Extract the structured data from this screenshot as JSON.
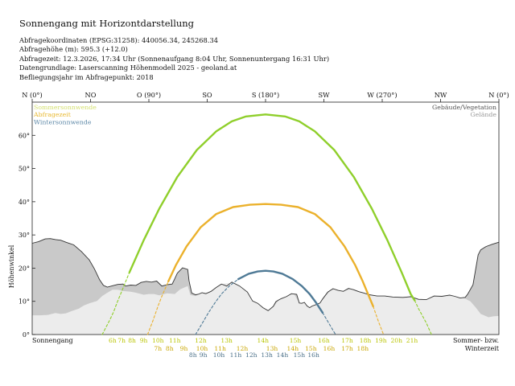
{
  "header": {
    "title": "Sonnengang mit Horizontdarstellung",
    "lines": [
      "Abfragekoordinaten (EPSG:31258): 440056.34, 245268.34",
      "Abfragehöhe (m): 595.3 (+12.0)",
      "Abfragezeit: 12.3.2026, 17:34 Uhr (Sonnenaufgang 8:04 Uhr,  Sonnenuntergang 16:31 Uhr)",
      "Datengrundlage: Laserscanning Höhenmodell 2025 - geoland.at",
      "Befliegungsjahr im Abfragepunkt: 2018"
    ]
  },
  "chart_data": {
    "type": "line",
    "xlim": [
      0,
      360
    ],
    "ylim": [
      0,
      70
    ],
    "ylabel": "Höhenwinkel",
    "y_ticks": [
      0,
      10,
      20,
      30,
      40,
      50,
      60
    ],
    "y_tick_labels": [
      "0°",
      "10°",
      "20°",
      "30°",
      "40°",
      "50°",
      "60°"
    ],
    "x_ticks": [
      {
        "az": 0,
        "label": "N (0°)"
      },
      {
        "az": 45,
        "label": "NO"
      },
      {
        "az": 90,
        "label": "O (90°)"
      },
      {
        "az": 135,
        "label": "SO"
      },
      {
        "az": 180,
        "label": "S (180°)"
      },
      {
        "az": 225,
        "label": "SW"
      },
      {
        "az": 270,
        "label": "W (270°)"
      },
      {
        "az": 315,
        "label": "NW"
      },
      {
        "az": 360,
        "label": "N (0°)"
      }
    ],
    "legend_left": [
      {
        "label": "Sommersonnwende",
        "color": "#d4e070"
      },
      {
        "label": "Abfragezeit",
        "color": "#e8b830"
      },
      {
        "label": "Wintersonnwende",
        "color": "#5a86a6"
      }
    ],
    "legend_right": [
      {
        "label": "Gebäude/Vegetation",
        "color": "#555555"
      },
      {
        "label": "Gelände",
        "color": "#9a9a9a"
      }
    ],
    "bottom_left_label": "Sonnengang",
    "bottom_right_label_1": "Sommer- bzw.",
    "bottom_right_label_2": "Winterzeit",
    "colors": {
      "summer": "#8fcf2b",
      "query": "#ebb12c",
      "winter": "#4f7a96",
      "summer_label": "#b9c400",
      "query_label": "#c9a600",
      "winter_label": "#476d86",
      "building": "#c9c9c9",
      "terrain": "#ececec"
    },
    "series": [
      {
        "name": "Sommersonnwende",
        "key": "summer",
        "points": [
          [
            54,
            0
          ],
          [
            60,
            4.5
          ],
          [
            63,
            7
          ],
          [
            64.5,
            8.6
          ],
          [
            66,
            10.1
          ],
          [
            68.5,
            12.5
          ],
          [
            75,
            18.7
          ],
          [
            86,
            28.4
          ],
          [
            98,
            37.9
          ],
          [
            112,
            47.5
          ],
          [
            127,
            55.6
          ],
          [
            142,
            61.2
          ],
          [
            154,
            64.2
          ],
          [
            165,
            65.7
          ],
          [
            180,
            66.3
          ],
          [
            195,
            65.7
          ],
          [
            206,
            64.2
          ],
          [
            218,
            61.2
          ],
          [
            233,
            55.6
          ],
          [
            248,
            47.5
          ],
          [
            262,
            37.9
          ],
          [
            274,
            28.4
          ],
          [
            285,
            18.7
          ],
          [
            292,
            12.2
          ],
          [
            295,
            10.3
          ],
          [
            298,
            7.8
          ],
          [
            304,
            3.5
          ],
          [
            308,
            0
          ]
        ],
        "hour_labels": [
          {
            "az": 62,
            "text": "6h"
          },
          {
            "az": 69,
            "text": "7h"
          },
          {
            "az": 77,
            "text": "8h"
          },
          {
            "az": 86,
            "text": "9h"
          },
          {
            "az": 97,
            "text": "10h"
          },
          {
            "az": 110,
            "text": "11h"
          },
          {
            "az": 130,
            "text": "12h"
          },
          {
            "az": 150,
            "text": "13h"
          },
          {
            "az": 178,
            "text": "14h"
          },
          {
            "az": 203,
            "text": "15h"
          },
          {
            "az": 225,
            "text": "16h"
          },
          {
            "az": 243,
            "text": "17h"
          },
          {
            "az": 257,
            "text": "18h"
          },
          {
            "az": 269,
            "text": "19h"
          },
          {
            "az": 281,
            "text": "20h"
          },
          {
            "az": 293,
            "text": "21h"
          }
        ]
      },
      {
        "name": "Abfragezeit",
        "key": "query",
        "points": [
          [
            89,
            0
          ],
          [
            93,
            4
          ],
          [
            97,
            8.5
          ],
          [
            100,
            11.5
          ],
          [
            105,
            16
          ],
          [
            111,
            21
          ],
          [
            119,
            26.5
          ],
          [
            130,
            32.3
          ],
          [
            142,
            36.3
          ],
          [
            155,
            38.4
          ],
          [
            168,
            39.1
          ],
          [
            180,
            39.3
          ],
          [
            192,
            39.1
          ],
          [
            205,
            38.4
          ],
          [
            218,
            36.3
          ],
          [
            230,
            32.3
          ],
          [
            241,
            26.5
          ],
          [
            249,
            21
          ],
          [
            255,
            16
          ],
          [
            259,
            12.2
          ],
          [
            263,
            8.5
          ],
          [
            267,
            4
          ],
          [
            271,
            0
          ]
        ],
        "hour_labels": [
          {
            "az": 97,
            "text": "7h"
          },
          {
            "az": 106,
            "text": "8h"
          },
          {
            "az": 117,
            "text": "9h"
          },
          {
            "az": 131,
            "text": "10h"
          },
          {
            "az": 145,
            "text": "11h"
          },
          {
            "az": 162,
            "text": "12h"
          },
          {
            "az": 185,
            "text": "13h"
          },
          {
            "az": 201,
            "text": "14h"
          },
          {
            "az": 215,
            "text": "15h"
          },
          {
            "az": 229,
            "text": "16h"
          },
          {
            "az": 243,
            "text": "17h"
          },
          {
            "az": 255,
            "text": "18h"
          }
        ]
      },
      {
        "name": "Wintersonnwende",
        "key": "winter",
        "points": [
          [
            126,
            0
          ],
          [
            131,
            3.3
          ],
          [
            136,
            6.6
          ],
          [
            141,
            9.6
          ],
          [
            146,
            12.2
          ],
          [
            152,
            14.6
          ],
          [
            159,
            16.7
          ],
          [
            167,
            18.3
          ],
          [
            174,
            19
          ],
          [
            180,
            19.2
          ],
          [
            186,
            19
          ],
          [
            193,
            18.3
          ],
          [
            201,
            16.7
          ],
          [
            208,
            14.6
          ],
          [
            214,
            12.2
          ],
          [
            219,
            9.6
          ],
          [
            224,
            6.6
          ],
          [
            229,
            3.3
          ],
          [
            234,
            0
          ]
        ],
        "hour_labels": [
          {
            "az": 124,
            "text": "8h"
          },
          {
            "az": 132,
            "text": "9h"
          },
          {
            "az": 144,
            "text": "10h"
          },
          {
            "az": 157,
            "text": "11h"
          },
          {
            "az": 169,
            "text": "12h"
          },
          {
            "az": 181,
            "text": "13h"
          },
          {
            "az": 193,
            "text": "14h"
          },
          {
            "az": 206,
            "text": "15h"
          },
          {
            "az": 217,
            "text": "16h"
          }
        ]
      }
    ],
    "building_horizon": [
      [
        0,
        27.5
      ],
      [
        5,
        28
      ],
      [
        10,
        28.8
      ],
      [
        14,
        28.9
      ],
      [
        18,
        28.6
      ],
      [
        22,
        28.4
      ],
      [
        26,
        27.8
      ],
      [
        32,
        27
      ],
      [
        38,
        25
      ],
      [
        44,
        22.5
      ],
      [
        48,
        19.8
      ],
      [
        52,
        16.5
      ],
      [
        55,
        14.8
      ],
      [
        58,
        14.3
      ],
      [
        62,
        14.7
      ],
      [
        66,
        15.1
      ],
      [
        70,
        15.2
      ],
      [
        72,
        14.6
      ],
      [
        76,
        14.9
      ],
      [
        80,
        14.8
      ],
      [
        84,
        15.7
      ],
      [
        88,
        16
      ],
      [
        92,
        15.8
      ],
      [
        96,
        16.1
      ],
      [
        100,
        14.6
      ],
      [
        104,
        15
      ],
      [
        108,
        15.2
      ],
      [
        110,
        16.8
      ],
      [
        112,
        18.5
      ],
      [
        116,
        20.1
      ],
      [
        120,
        19.6
      ],
      [
        121,
        16.2
      ],
      [
        123,
        12.5
      ],
      [
        126,
        12
      ],
      [
        128,
        12.1
      ],
      [
        131,
        12.6
      ],
      [
        134,
        12.3
      ],
      [
        138,
        13
      ],
      [
        142,
        14.2
      ],
      [
        146,
        15.2
      ],
      [
        150,
        14.6
      ],
      [
        154,
        15.8
      ],
      [
        160,
        14.6
      ],
      [
        166,
        12.8
      ],
      [
        170,
        10.1
      ],
      [
        174,
        9.4
      ],
      [
        178,
        8.1
      ],
      [
        182,
        7.2
      ],
      [
        186,
        8.5
      ],
      [
        188,
        9.9
      ],
      [
        190,
        10.4
      ],
      [
        192,
        10.8
      ],
      [
        196,
        11.4
      ],
      [
        200,
        12.3
      ],
      [
        204,
        12.1
      ],
      [
        206,
        9.5
      ],
      [
        208,
        9.4
      ],
      [
        210,
        9.7
      ],
      [
        212,
        8.6
      ],
      [
        214,
        8.1
      ],
      [
        216,
        8.6
      ],
      [
        219,
        9
      ],
      [
        222,
        9.5
      ],
      [
        224,
        10.7
      ],
      [
        228,
        12.8
      ],
      [
        232,
        13.8
      ],
      [
        236,
        13.3
      ],
      [
        240,
        13
      ],
      [
        244,
        13.9
      ],
      [
        248,
        13.5
      ],
      [
        252,
        12.9
      ],
      [
        256,
        12.5
      ],
      [
        260,
        12
      ],
      [
        266,
        11.6
      ],
      [
        272,
        11.6
      ],
      [
        278,
        11.3
      ],
      [
        286,
        11.2
      ],
      [
        292,
        11.4
      ],
      [
        298,
        10.6
      ],
      [
        304,
        10.5
      ],
      [
        310,
        11.6
      ],
      [
        316,
        11.5
      ],
      [
        322,
        11.9
      ],
      [
        326,
        11.5
      ],
      [
        330,
        11
      ],
      [
        334,
        11.2
      ],
      [
        336,
        12.2
      ],
      [
        340,
        15
      ],
      [
        342,
        19.5
      ],
      [
        344,
        24
      ],
      [
        346,
        25.5
      ],
      [
        350,
        26.5
      ],
      [
        355,
        27.2
      ],
      [
        360,
        27.8
      ]
    ],
    "terrain_horizon": [
      [
        0,
        5.8
      ],
      [
        6,
        5.8
      ],
      [
        12,
        5.9
      ],
      [
        18,
        6.5
      ],
      [
        22,
        6.2
      ],
      [
        26,
        6.4
      ],
      [
        30,
        7
      ],
      [
        36,
        7.8
      ],
      [
        40,
        8.8
      ],
      [
        44,
        9.4
      ],
      [
        50,
        10.1
      ],
      [
        54,
        11.6
      ],
      [
        58,
        12.6
      ],
      [
        62,
        13.5
      ],
      [
        66,
        13.5
      ],
      [
        70,
        13.1
      ],
      [
        76,
        12.9
      ],
      [
        80,
        12.6
      ],
      [
        86,
        12
      ],
      [
        90,
        12.2
      ],
      [
        94,
        12.2
      ],
      [
        98,
        11.8
      ],
      [
        104,
        12.4
      ],
      [
        110,
        12.2
      ],
      [
        114,
        13.6
      ],
      [
        118,
        14.3
      ],
      [
        120,
        14.6
      ],
      [
        122,
        11.9
      ],
      [
        126,
        11.6
      ],
      [
        130,
        12.4
      ],
      [
        136,
        12.8
      ],
      [
        142,
        14.2
      ],
      [
        148,
        15.4
      ],
      [
        154,
        15.6
      ],
      [
        160,
        14.7
      ],
      [
        166,
        12.7
      ],
      [
        170,
        10
      ],
      [
        174,
        9.5
      ],
      [
        178,
        8.1
      ],
      [
        182,
        7.2
      ],
      [
        186,
        8.4
      ],
      [
        190,
        10.3
      ],
      [
        194,
        11
      ],
      [
        198,
        12
      ],
      [
        202,
        12.2
      ],
      [
        206,
        9.5
      ],
      [
        210,
        9.6
      ],
      [
        214,
        8.1
      ],
      [
        218,
        8.8
      ],
      [
        222,
        9.4
      ],
      [
        226,
        11.4
      ],
      [
        230,
        13.3
      ],
      [
        234,
        13.7
      ],
      [
        238,
        13.2
      ],
      [
        242,
        13.3
      ],
      [
        246,
        13.7
      ],
      [
        250,
        13
      ],
      [
        256,
        12.4
      ],
      [
        262,
        11.9
      ],
      [
        270,
        11.6
      ],
      [
        278,
        11.2
      ],
      [
        286,
        11
      ],
      [
        292,
        11.2
      ],
      [
        298,
        10.4
      ],
      [
        304,
        10.4
      ],
      [
        310,
        11.4
      ],
      [
        316,
        11.5
      ],
      [
        322,
        11.6
      ],
      [
        328,
        11.4
      ],
      [
        334,
        10.8
      ],
      [
        338,
        10
      ],
      [
        342,
        8.2
      ],
      [
        346,
        6.2
      ],
      [
        352,
        5.2
      ],
      [
        356,
        5.5
      ],
      [
        360,
        5.6
      ]
    ]
  }
}
